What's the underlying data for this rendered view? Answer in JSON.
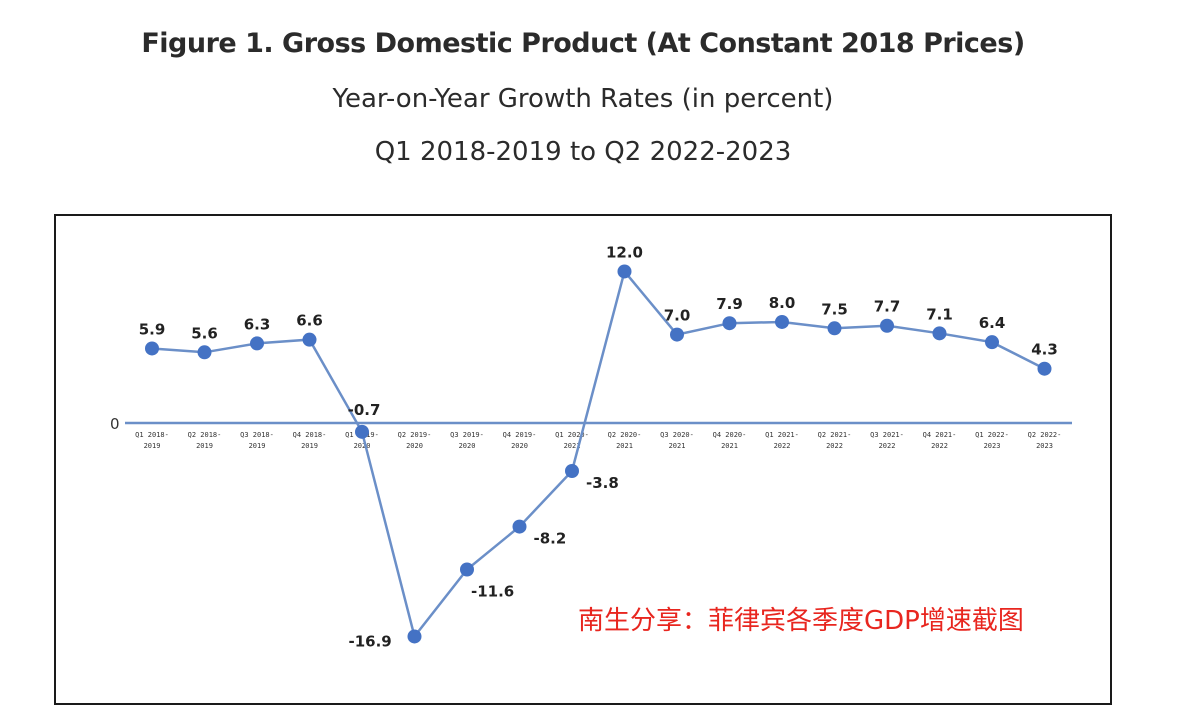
{
  "chart_data": {
    "type": "line",
    "title": "Figure 1. Gross Domestic Product (At Constant 2018 Prices)",
    "subtitle": "Year-on-Year Growth Rates (in percent)",
    "subtitle2": "Q1 2018-2019 to Q2 2022-2023",
    "categories": [
      [
        "Q1 2018-",
        "2019"
      ],
      [
        "Q2 2018-",
        "2019"
      ],
      [
        "Q3 2018-",
        "2019"
      ],
      [
        "Q4 2018-",
        "2019"
      ],
      [
        "Q1 2019-",
        "2020"
      ],
      [
        "Q2 2019-",
        "2020"
      ],
      [
        "Q3 2019-",
        "2020"
      ],
      [
        "Q4 2019-",
        "2020"
      ],
      [
        "Q1 2020-",
        "2021"
      ],
      [
        "Q2 2020-",
        "2021"
      ],
      [
        "Q3 2020-",
        "2021"
      ],
      [
        "Q4 2020-",
        "2021"
      ],
      [
        "Q1 2021-",
        "2022"
      ],
      [
        "Q2 2021-",
        "2022"
      ],
      [
        "Q3 2021-",
        "2022"
      ],
      [
        "Q4 2021-",
        "2022"
      ],
      [
        "Q1 2022-",
        "2023"
      ],
      [
        "Q2 2022-",
        "2023"
      ]
    ],
    "values": [
      5.9,
      5.6,
      6.3,
      6.6,
      -0.7,
      -16.9,
      -11.6,
      -8.2,
      -3.8,
      12.0,
      7.0,
      7.9,
      8.0,
      7.5,
      7.7,
      7.1,
      6.4,
      4.3
    ],
    "value_labels": [
      "5.9",
      "5.6",
      "6.3",
      "6.6",
      "-0.7",
      "-16.9",
      "-11.6",
      "-8.2",
      "-3.8",
      "12.0",
      "7.0",
      "7.9",
      "8.0",
      "7.5",
      "7.7",
      "7.1",
      "6.4",
      "4.3"
    ],
    "zero_label": "0",
    "ylim": [
      -19,
      14
    ],
    "grid": false,
    "legend": "none",
    "colors": {
      "line": "#6b8fc8",
      "point": "#4472c4",
      "axis": "#6b8fc8",
      "frame": "#1a1a1a"
    }
  },
  "watermark": "南生分享：菲律宾各季度GDP增速截图"
}
